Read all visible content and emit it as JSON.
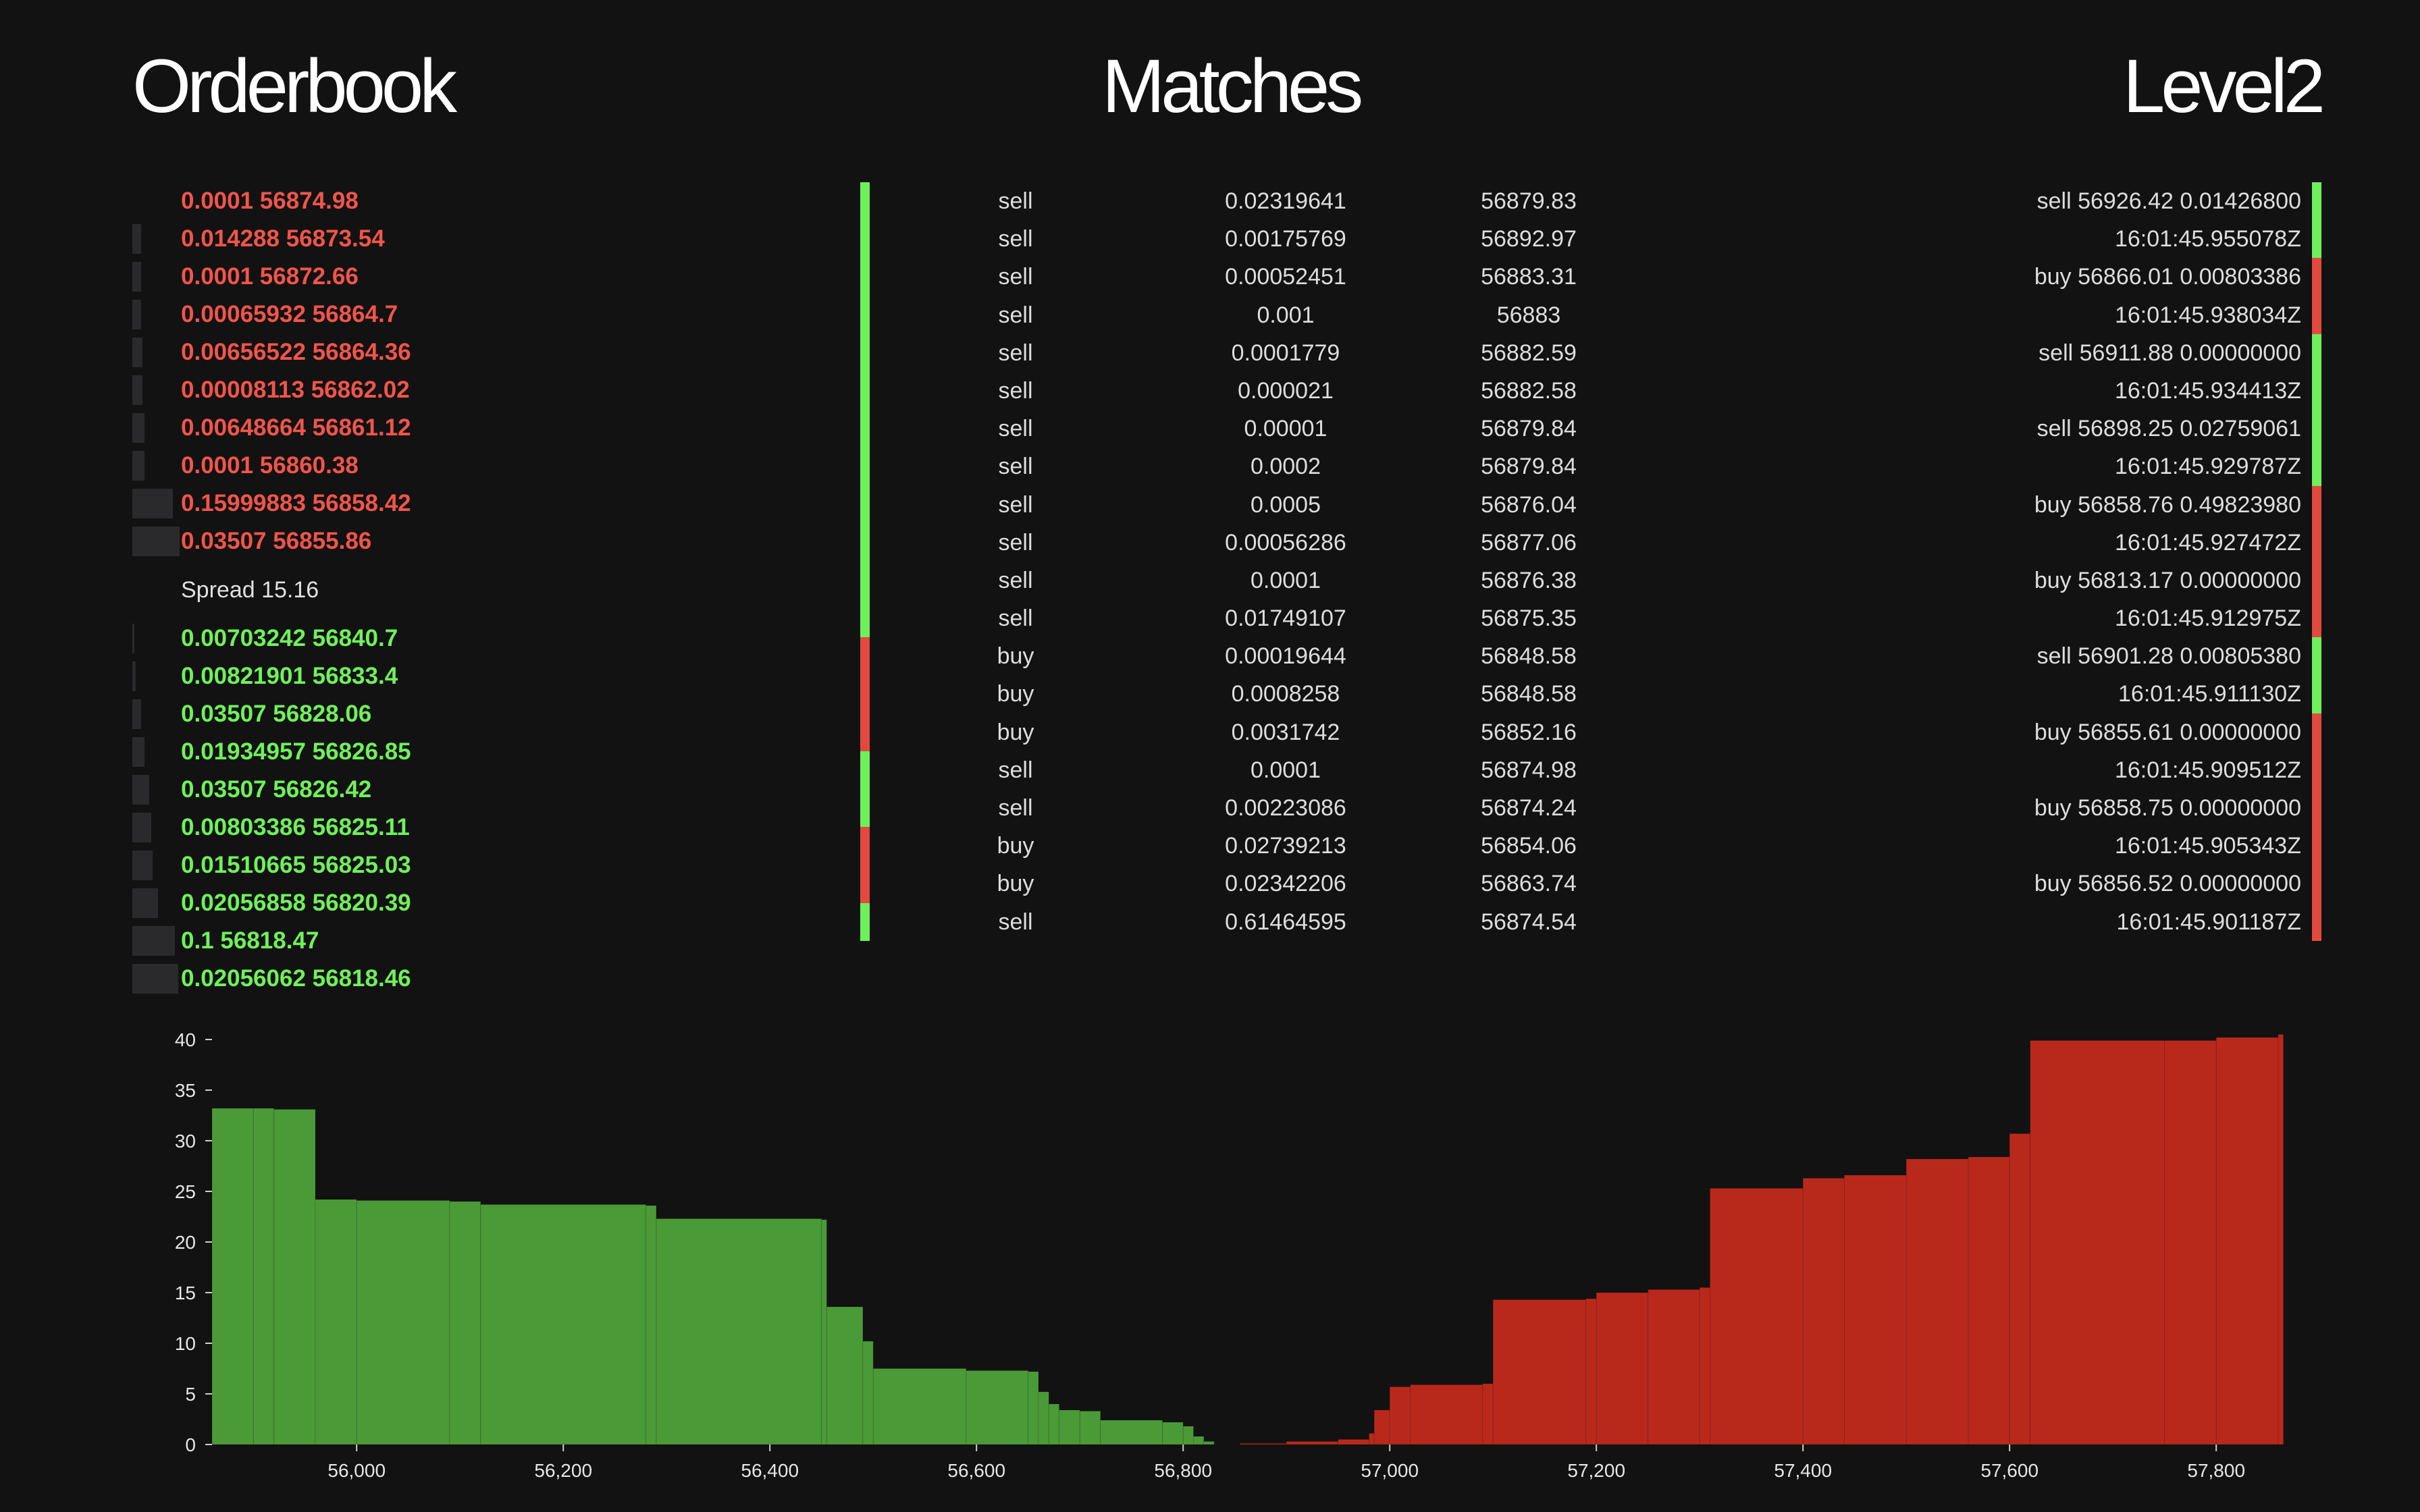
{
  "titles": {
    "orderbook": "Orderbook",
    "matches": "Matches",
    "level2": "Level2"
  },
  "orderbook": {
    "asks": [
      {
        "size": "0.0001",
        "price": "56874.98",
        "depth": 0.0
      },
      {
        "size": "0.014288",
        "price": "56873.54",
        "depth": 0.05
      },
      {
        "size": "0.0001",
        "price": "56872.66",
        "depth": 0.05
      },
      {
        "size": "0.00065932",
        "price": "56864.7",
        "depth": 0.05
      },
      {
        "size": "0.00656522",
        "price": "56864.36",
        "depth": 0.06
      },
      {
        "size": "0.00008113",
        "price": "56862.02",
        "depth": 0.06
      },
      {
        "size": "0.00648664",
        "price": "56861.12",
        "depth": 0.07
      },
      {
        "size": "0.0001",
        "price": "56860.38",
        "depth": 0.07
      },
      {
        "size": "0.15999883",
        "price": "56858.42",
        "depth": 0.24
      },
      {
        "size": "0.03507",
        "price": "56855.86",
        "depth": 0.28
      }
    ],
    "spread": "Spread 15.16",
    "bids": [
      {
        "size": "0.00703242",
        "price": "56840.7",
        "depth": 0.01
      },
      {
        "size": "0.00821901",
        "price": "56833.4",
        "depth": 0.02
      },
      {
        "size": "0.03507",
        "price": "56828.06",
        "depth": 0.05
      },
      {
        "size": "0.01934957",
        "price": "56826.85",
        "depth": 0.07
      },
      {
        "size": "0.03507",
        "price": "56826.42",
        "depth": 0.1
      },
      {
        "size": "0.00803386",
        "price": "56825.11",
        "depth": 0.11
      },
      {
        "size": "0.01510665",
        "price": "56825.03",
        "depth": 0.12
      },
      {
        "size": "0.02056858",
        "price": "56820.39",
        "depth": 0.15
      },
      {
        "size": "0.1",
        "price": "56818.47",
        "depth": 0.25
      },
      {
        "size": "0.02056062",
        "price": "56818.46",
        "depth": 0.27
      }
    ]
  },
  "matches": [
    {
      "side": "sell",
      "size": "0.02319641",
      "price": "56879.83"
    },
    {
      "side": "sell",
      "size": "0.00175769",
      "price": "56892.97"
    },
    {
      "side": "sell",
      "size": "0.00052451",
      "price": "56883.31"
    },
    {
      "side": "sell",
      "size": "0.001",
      "price": "56883"
    },
    {
      "side": "sell",
      "size": "0.0001779",
      "price": "56882.59"
    },
    {
      "side": "sell",
      "size": "0.000021",
      "price": "56882.58"
    },
    {
      "side": "sell",
      "size": "0.00001",
      "price": "56879.84"
    },
    {
      "side": "sell",
      "size": "0.0002",
      "price": "56879.84"
    },
    {
      "side": "sell",
      "size": "0.0005",
      "price": "56876.04"
    },
    {
      "side": "sell",
      "size": "0.00056286",
      "price": "56877.06"
    },
    {
      "side": "sell",
      "size": "0.0001",
      "price": "56876.38"
    },
    {
      "side": "sell",
      "size": "0.01749107",
      "price": "56875.35"
    },
    {
      "side": "buy",
      "size": "0.00019644",
      "price": "56848.58"
    },
    {
      "side": "buy",
      "size": "0.0008258",
      "price": "56848.58"
    },
    {
      "side": "buy",
      "size": "0.0031742",
      "price": "56852.16"
    },
    {
      "side": "sell",
      "size": "0.0001",
      "price": "56874.98"
    },
    {
      "side": "sell",
      "size": "0.00223086",
      "price": "56874.24"
    },
    {
      "side": "buy",
      "size": "0.02739213",
      "price": "56854.06"
    },
    {
      "side": "buy",
      "size": "0.02342206",
      "price": "56863.74"
    },
    {
      "side": "sell",
      "size": "0.61464595",
      "price": "56874.54"
    }
  ],
  "level2": [
    {
      "side": "sell",
      "text": "sell 56926.42 0.01426800",
      "time": "16:01:45.955078Z"
    },
    {
      "side": "buy",
      "text": "buy 56866.01 0.00803386",
      "time": "16:01:45.938034Z"
    },
    {
      "side": "sell",
      "text": "sell 56911.88 0.00000000",
      "time": "16:01:45.934413Z"
    },
    {
      "side": "sell",
      "text": "sell 56898.25 0.02759061",
      "time": "16:01:45.929787Z"
    },
    {
      "side": "buy",
      "text": "buy 56858.76 0.49823980",
      "time": "16:01:45.927472Z"
    },
    {
      "side": "buy",
      "text": "buy 56813.17 0.00000000",
      "time": "16:01:45.912975Z"
    },
    {
      "side": "sell",
      "text": "sell 56901.28 0.00805380",
      "time": "16:01:45.911130Z"
    },
    {
      "side": "buy",
      "text": "buy 56855.61 0.00000000",
      "time": "16:01:45.909512Z"
    },
    {
      "side": "buy",
      "text": "buy 56858.75 0.00000000",
      "time": "16:01:45.905343Z"
    },
    {
      "side": "buy",
      "text": "buy 56856.52 0.00000000",
      "time": "16:01:45.901187Z"
    }
  ],
  "colors": {
    "bid": "#6ff25a",
    "ask": "#f2554a",
    "stripe_buy": "#6ef05a",
    "stripe_sell": "#e24a40",
    "depth_bid": "#4a9a38",
    "depth_ask": "#b8291c",
    "background": "#121213"
  },
  "chart_data": {
    "type": "area",
    "xlim": [
      55860,
      57860
    ],
    "ylim": [
      0,
      40
    ],
    "x_ticks": [
      "56,000",
      "56,200",
      "56,400",
      "56,600",
      "56,800",
      "57,000",
      "57,200",
      "57,400",
      "57,600",
      "57,800"
    ],
    "x_tick_values": [
      56000,
      56200,
      56400,
      56600,
      56800,
      57000,
      57200,
      57400,
      57600,
      57800
    ],
    "y_ticks": [
      0,
      5,
      10,
      15,
      20,
      25,
      30,
      35,
      40
    ],
    "series": [
      {
        "name": "bids",
        "points": [
          [
            55860,
            33.2
          ],
          [
            55900,
            33.2
          ],
          [
            55920,
            33.1
          ],
          [
            55960,
            24.2
          ],
          [
            56000,
            24.1
          ],
          [
            56090,
            24.0
          ],
          [
            56120,
            23.7
          ],
          [
            56280,
            23.6
          ],
          [
            56290,
            22.3
          ],
          [
            56450,
            22.2
          ],
          [
            56455,
            13.6
          ],
          [
            56490,
            10.2
          ],
          [
            56500,
            7.5
          ],
          [
            56590,
            7.3
          ],
          [
            56650,
            7.2
          ],
          [
            56660,
            5.2
          ],
          [
            56670,
            4.0
          ],
          [
            56680,
            3.4
          ],
          [
            56700,
            3.3
          ],
          [
            56720,
            2.4
          ],
          [
            56780,
            2.2
          ],
          [
            56800,
            1.8
          ],
          [
            56810,
            0.8
          ],
          [
            56820,
            0.3
          ],
          [
            56830,
            0.0
          ]
        ]
      },
      {
        "name": "asks",
        "points": [
          [
            56855,
            0.1
          ],
          [
            56900,
            0.3
          ],
          [
            56950,
            0.5
          ],
          [
            56980,
            1.1
          ],
          [
            56985,
            3.4
          ],
          [
            57000,
            5.7
          ],
          [
            57020,
            5.9
          ],
          [
            57090,
            6.0
          ],
          [
            57100,
            14.3
          ],
          [
            57190,
            14.4
          ],
          [
            57200,
            15.0
          ],
          [
            57250,
            15.3
          ],
          [
            57300,
            15.5
          ],
          [
            57310,
            25.3
          ],
          [
            57400,
            26.3
          ],
          [
            57440,
            26.6
          ],
          [
            57500,
            28.2
          ],
          [
            57560,
            28.4
          ],
          [
            57600,
            30.7
          ],
          [
            57620,
            39.9
          ],
          [
            57750,
            39.9
          ],
          [
            57800,
            40.2
          ],
          [
            57860,
            40.5
          ]
        ]
      }
    ]
  }
}
